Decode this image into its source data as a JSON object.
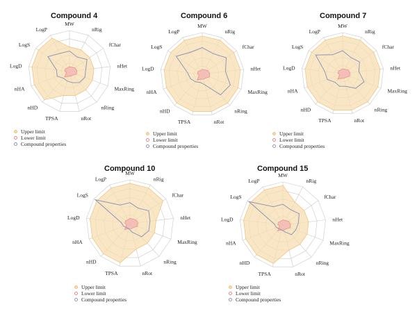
{
  "colors": {
    "upper_fill": "#f7ddb0",
    "upper_stroke": "#f0c27a",
    "lower_fill": "#f3b8b4",
    "lower_stroke": "#ea8a8a",
    "compound_stroke": "#8f96b8",
    "grid": "#c9c9c9"
  },
  "legend": {
    "upper": "Upper limit",
    "lower": "Lower limit",
    "compound": "Compound properties"
  },
  "chart_data": [
    {
      "type": "radar",
      "title": "Compound 4",
      "axes": [
        "MW",
        "nRig",
        "fChar",
        "nHet",
        "MaxRing",
        "nRing",
        "nRot",
        "TPSA",
        "nHD",
        "nHA",
        "LogD",
        "LogS",
        "LogP"
      ],
      "rmax": 5,
      "grid_levels": 5,
      "series": [
        {
          "name": "Upper limit",
          "values": [
            3.0,
            3.0,
            3.0,
            3.0,
            3.0,
            3.0,
            3.0,
            3.0,
            4.6,
            4.6,
            4.6,
            4.6,
            4.6
          ]
        },
        {
          "name": "Lower limit",
          "values": [
            0.6,
            0.6,
            0.8,
            0.9,
            0.9,
            0.6,
            0.6,
            0.6,
            0.9,
            0.4,
            0.6,
            0.6,
            0.5
          ]
        },
        {
          "name": "Compound properties",
          "values": [
            2.5,
            2.0,
            2.6,
            2.0,
            2.0,
            1.8,
            1.4,
            1.2,
            1.1,
            1.6,
            1.6,
            3.2,
            2.5
          ]
        }
      ]
    },
    {
      "type": "radar",
      "title": "Compound 6",
      "axes": [
        "MW",
        "nRig",
        "fChar",
        "nHet",
        "MaxRing",
        "nRing",
        "nRot",
        "TPSA",
        "nHD",
        "nHA",
        "LogD",
        "LogS",
        "LogP"
      ],
      "rmax": 5,
      "grid_levels": 5,
      "series": [
        {
          "name": "Upper limit",
          "values": [
            4.6,
            4.6,
            4.6,
            4.6,
            4.6,
            4.6,
            4.6,
            4.6,
            4.6,
            4.6,
            4.6,
            4.6,
            4.6
          ]
        },
        {
          "name": "Lower limit",
          "values": [
            0.6,
            0.6,
            0.8,
            0.9,
            0.9,
            0.6,
            0.6,
            0.6,
            0.9,
            0.4,
            0.6,
            0.6,
            0.5
          ]
        },
        {
          "name": "Compound properties",
          "values": [
            3.2,
            2.8,
            3.5,
            2.8,
            3.6,
            3.3,
            1.3,
            1.0,
            1.2,
            1.5,
            1.8,
            3.8,
            3.0
          ]
        }
      ]
    },
    {
      "type": "radar",
      "title": "Compound 7",
      "axes": [
        "MW",
        "nRig",
        "fChar",
        "nHet",
        "MaxRing",
        "nRing",
        "nRot",
        "TPSA",
        "nHD",
        "nHA",
        "LogD",
        "LogS",
        "LogP"
      ],
      "rmax": 5,
      "grid_levels": 5,
      "series": [
        {
          "name": "Upper limit",
          "values": [
            4.6,
            4.6,
            4.6,
            4.6,
            4.6,
            4.6,
            4.6,
            4.6,
            4.6,
            4.6,
            4.6,
            4.6,
            4.6
          ]
        },
        {
          "name": "Lower limit",
          "values": [
            0.6,
            0.6,
            0.8,
            0.9,
            0.9,
            0.6,
            0.6,
            0.6,
            0.9,
            0.4,
            0.6,
            0.6,
            0.5
          ]
        },
        {
          "name": "Compound properties",
          "values": [
            2.8,
            2.2,
            2.5,
            2.0,
            2.8,
            2.4,
            1.6,
            1.6,
            1.4,
            2.0,
            2.2,
            4.0,
            2.6
          ]
        }
      ]
    },
    {
      "type": "radar",
      "title": "Compound 10",
      "axes": [
        "MW",
        "nRig",
        "fChar",
        "nHet",
        "MaxRing",
        "nRing",
        "nRot",
        "TPSA",
        "nHD",
        "nHA",
        "LogD",
        "LogS",
        "LogP"
      ],
      "rmax": 5,
      "grid_levels": 5,
      "series": [
        {
          "name": "Upper limit",
          "values": [
            4.6,
            4.6,
            4.6,
            3.0,
            3.0,
            3.0,
            3.0,
            4.6,
            4.6,
            4.6,
            4.6,
            4.6,
            4.6
          ]
        },
        {
          "name": "Lower limit",
          "values": [
            0.6,
            0.6,
            0.8,
            0.9,
            0.9,
            0.6,
            0.6,
            0.6,
            0.9,
            0.4,
            0.6,
            0.6,
            0.5
          ]
        },
        {
          "name": "Compound properties",
          "values": [
            2.4,
            2.0,
            2.6,
            2.3,
            2.3,
            2.0,
            1.0,
            0.6,
            0.6,
            0.8,
            1.0,
            4.8,
            2.4
          ]
        }
      ]
    },
    {
      "type": "radar",
      "title": "Compound 15",
      "axes": [
        "MW",
        "nRig",
        "fChar",
        "nHet",
        "MaxRing",
        "nRing",
        "nRot",
        "TPSA",
        "nHD",
        "nHA",
        "LogD",
        "LogS",
        "LogP"
      ],
      "rmax": 5,
      "grid_levels": 5,
      "series": [
        {
          "name": "Upper limit",
          "values": [
            4.6,
            3.0,
            3.0,
            3.0,
            3.0,
            3.0,
            3.0,
            4.6,
            4.6,
            4.6,
            4.6,
            4.6,
            4.6
          ]
        },
        {
          "name": "Lower limit",
          "values": [
            0.6,
            0.6,
            0.8,
            0.9,
            0.9,
            0.6,
            0.6,
            0.6,
            0.9,
            0.4,
            0.6,
            0.6,
            0.5
          ]
        },
        {
          "name": "Compound properties",
          "values": [
            2.4,
            2.0,
            2.3,
            1.8,
            1.6,
            1.5,
            0.8,
            0.6,
            0.6,
            0.8,
            1.0,
            4.8,
            2.4
          ]
        }
      ]
    }
  ]
}
